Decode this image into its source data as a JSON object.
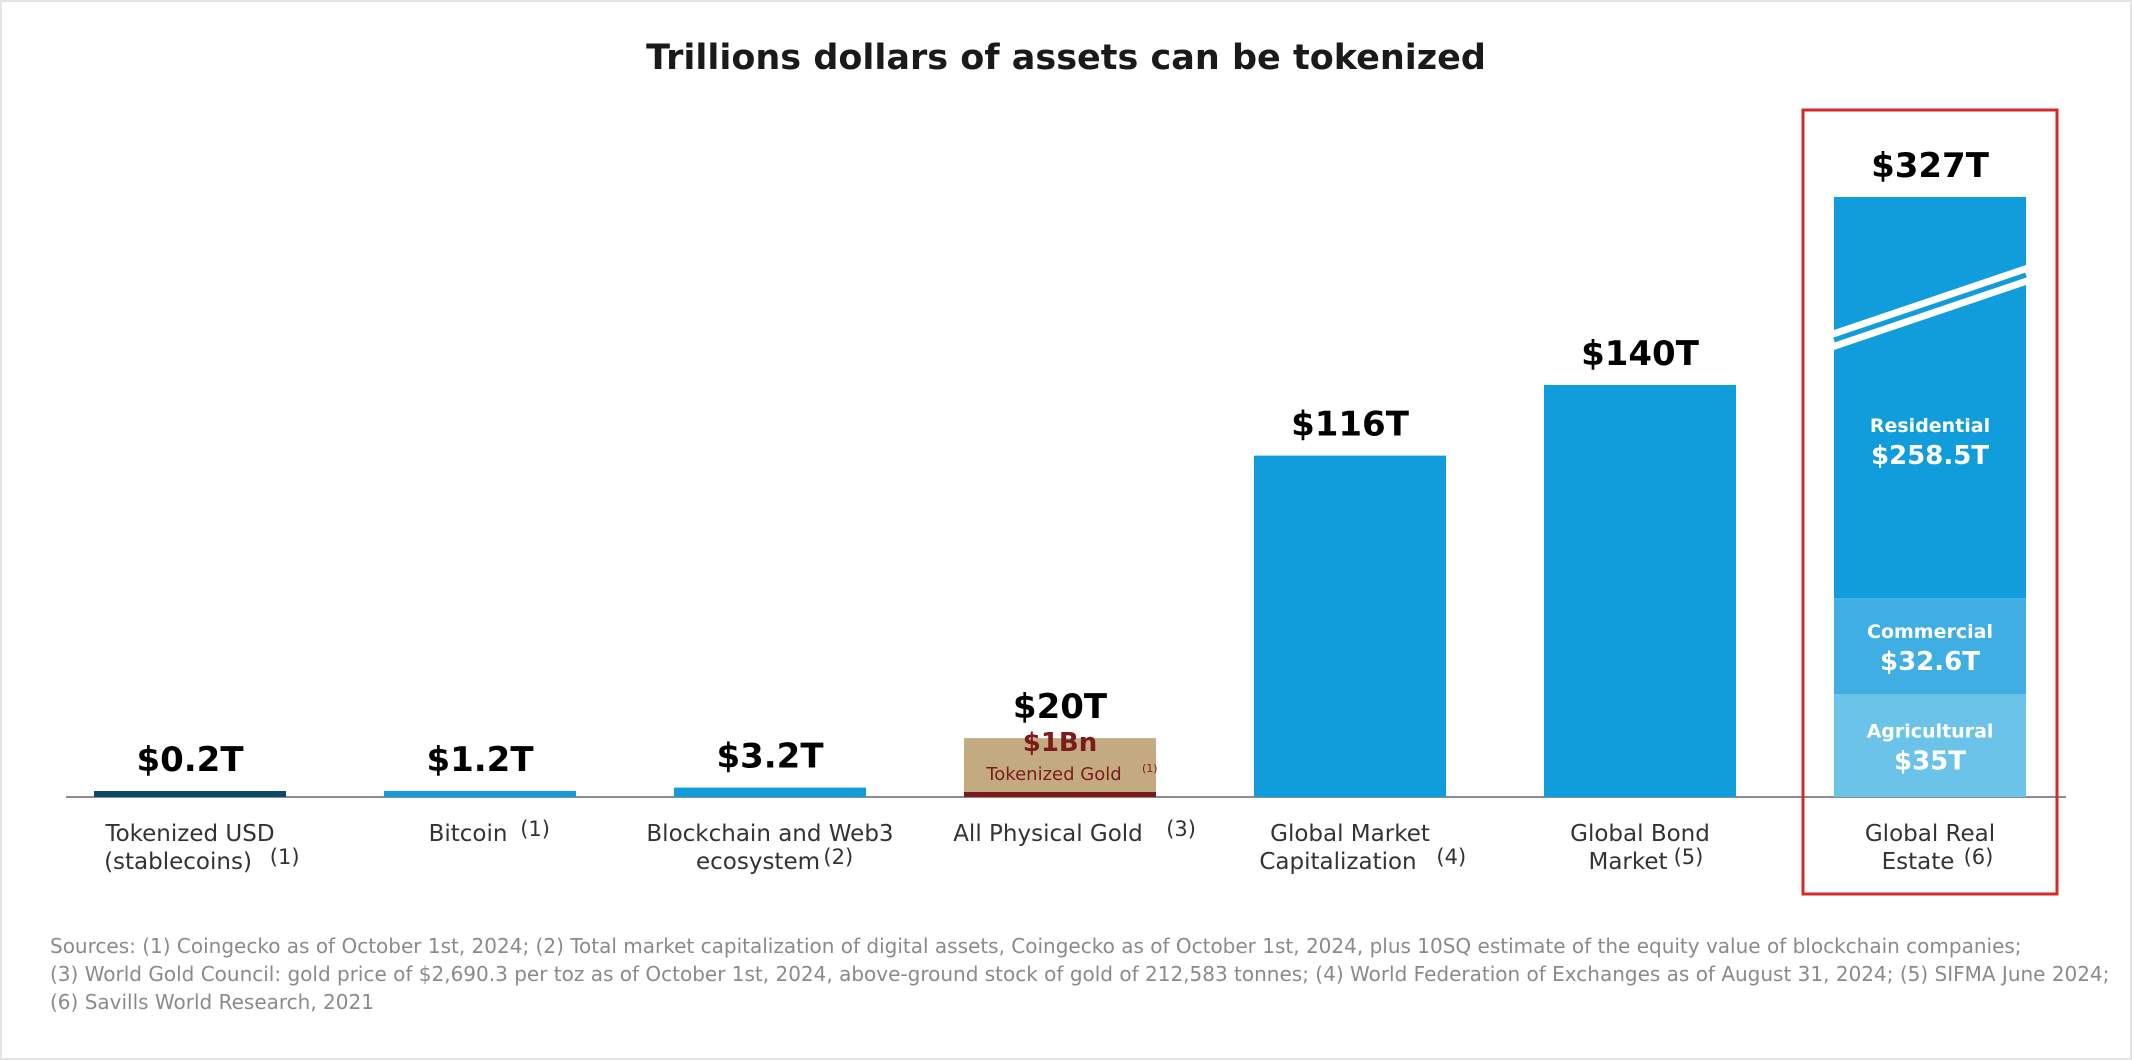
{
  "chart_data": {
    "type": "bar",
    "title": "Trillions dollars of assets can be tokenized",
    "xlabel": "",
    "ylabel": "",
    "categories": [
      {
        "line1": "Tokenized USD",
        "line2": "(stablecoins)",
        "ref": "(1)"
      },
      {
        "line1": "Bitcoin",
        "line2": "",
        "ref": "(1)"
      },
      {
        "line1": "Blockchain and Web3",
        "line2": "ecosystem",
        "ref": "(2)"
      },
      {
        "line1": "All Physical Gold",
        "line2": "",
        "ref": "(3)"
      },
      {
        "line1": "Global Market",
        "line2": "Capitalization",
        "ref": "(4)"
      },
      {
        "line1": "Global Bond",
        "line2": "Market",
        "ref": "(5)"
      },
      {
        "line1": "Global Real",
        "line2": "Estate",
        "ref": "(6)"
      }
    ],
    "values": [
      0.2,
      1.2,
      3.2,
      20,
      116,
      140,
      327
    ],
    "value_labels": [
      "$0.2T",
      "$1.2T",
      "$3.2T",
      "$20T",
      "$116T",
      "$140T",
      "$327T"
    ],
    "axis_break": {
      "on_category_index": 6,
      "display_max": 140
    },
    "grid": false,
    "legend": "none",
    "gold_inset": {
      "value_label": "$1Bn",
      "label": "Tokenized Gold",
      "ref": "(1)"
    },
    "stacked_segments": [
      {
        "name": "Agricultural",
        "value": 35,
        "value_label": "$35T"
      },
      {
        "name": "Commercial",
        "value": 32.6,
        "value_label": "$32.6T"
      },
      {
        "name": "Residential",
        "value": 258.5,
        "value_label": "$258.5T"
      }
    ],
    "highlighted_category_index": 6
  },
  "sources": [
    "Sources: (1) Coingecko as of October 1st, 2024; (2) Total market capitalization of digital assets, Coingecko as of October 1st, 2024, plus 10SQ estimate of the equity value of blockchain companies;",
    "(3) World Gold Council: gold price of $2,690.3 per toz as of October 1st, 2024, above-ground stock of gold of 212,583 tonnes; (4) World Federation of Exchanges as of August 31, 2024; (5) SIFMA June 2024;",
    "(6) Savills World Research, 2021"
  ],
  "colors": {
    "bar": "#119ddb",
    "stablecoin_bar": "#0b4a6b",
    "gold_bar": "#c4aa80",
    "gold_accent": "#7b1c1c",
    "commercial": "#3eaee3",
    "agricultural": "#6cc3ea",
    "highlight_border": "#d42a2a",
    "axis": "#666666"
  }
}
